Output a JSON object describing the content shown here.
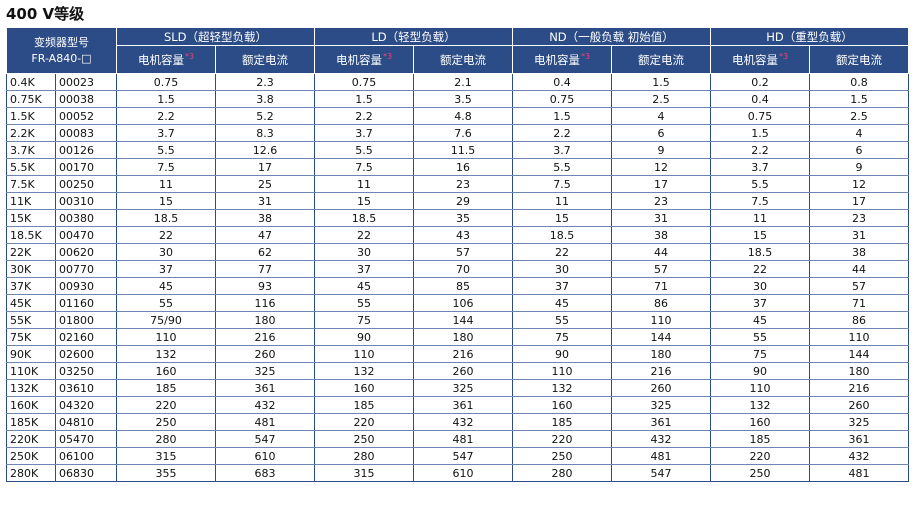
{
  "title": "400 V等级",
  "header": {
    "model_line1": "变频器型号",
    "model_line2": "FR-A840-□",
    "groups": [
      "SLD（超轻型负载）",
      "LD（轻型负载）",
      "ND（一般负载 初始值）",
      "HD（重型负载）"
    ],
    "motor_capacity": "电机容量",
    "rated_current": "额定电流",
    "note_mark": "*3"
  },
  "rows": [
    [
      "0.4K",
      "00023",
      "0.75",
      "2.3",
      "0.75",
      "2.1",
      "0.4",
      "1.5",
      "0.2",
      "0.8"
    ],
    [
      "0.75K",
      "00038",
      "1.5",
      "3.8",
      "1.5",
      "3.5",
      "0.75",
      "2.5",
      "0.4",
      "1.5"
    ],
    [
      "1.5K",
      "00052",
      "2.2",
      "5.2",
      "2.2",
      "4.8",
      "1.5",
      "4",
      "0.75",
      "2.5"
    ],
    [
      "2.2K",
      "00083",
      "3.7",
      "8.3",
      "3.7",
      "7.6",
      "2.2",
      "6",
      "1.5",
      "4"
    ],
    [
      "3.7K",
      "00126",
      "5.5",
      "12.6",
      "5.5",
      "11.5",
      "3.7",
      "9",
      "2.2",
      "6"
    ],
    [
      "5.5K",
      "00170",
      "7.5",
      "17",
      "7.5",
      "16",
      "5.5",
      "12",
      "3.7",
      "9"
    ],
    [
      "7.5K",
      "00250",
      "11",
      "25",
      "11",
      "23",
      "7.5",
      "17",
      "5.5",
      "12"
    ],
    [
      "11K",
      "00310",
      "15",
      "31",
      "15",
      "29",
      "11",
      "23",
      "7.5",
      "17"
    ],
    [
      "15K",
      "00380",
      "18.5",
      "38",
      "18.5",
      "35",
      "15",
      "31",
      "11",
      "23"
    ],
    [
      "18.5K",
      "00470",
      "22",
      "47",
      "22",
      "43",
      "18.5",
      "38",
      "15",
      "31"
    ],
    [
      "22K",
      "00620",
      "30",
      "62",
      "30",
      "57",
      "22",
      "44",
      "18.5",
      "38"
    ],
    [
      "30K",
      "00770",
      "37",
      "77",
      "37",
      "70",
      "30",
      "57",
      "22",
      "44"
    ],
    [
      "37K",
      "00930",
      "45",
      "93",
      "45",
      "85",
      "37",
      "71",
      "30",
      "57"
    ],
    [
      "45K",
      "01160",
      "55",
      "116",
      "55",
      "106",
      "45",
      "86",
      "37",
      "71"
    ],
    [
      "55K",
      "01800",
      "75/90",
      "180",
      "75",
      "144",
      "55",
      "110",
      "45",
      "86"
    ],
    [
      "75K",
      "02160",
      "110",
      "216",
      "90",
      "180",
      "75",
      "144",
      "55",
      "110"
    ],
    [
      "90K",
      "02600",
      "132",
      "260",
      "110",
      "216",
      "90",
      "180",
      "75",
      "144"
    ],
    [
      "110K",
      "03250",
      "160",
      "325",
      "132",
      "260",
      "110",
      "216",
      "90",
      "180"
    ],
    [
      "132K",
      "03610",
      "185",
      "361",
      "160",
      "325",
      "132",
      "260",
      "110",
      "216"
    ],
    [
      "160K",
      "04320",
      "220",
      "432",
      "185",
      "361",
      "160",
      "325",
      "132",
      "260"
    ],
    [
      "185K",
      "04810",
      "250",
      "481",
      "220",
      "432",
      "185",
      "361",
      "160",
      "325"
    ],
    [
      "220K",
      "05470",
      "280",
      "547",
      "250",
      "481",
      "220",
      "432",
      "185",
      "361"
    ],
    [
      "250K",
      "06100",
      "315",
      "610",
      "280",
      "547",
      "250",
      "481",
      "220",
      "432"
    ],
    [
      "280K",
      "06830",
      "355",
      "683",
      "315",
      "610",
      "280",
      "547",
      "250",
      "481"
    ]
  ]
}
